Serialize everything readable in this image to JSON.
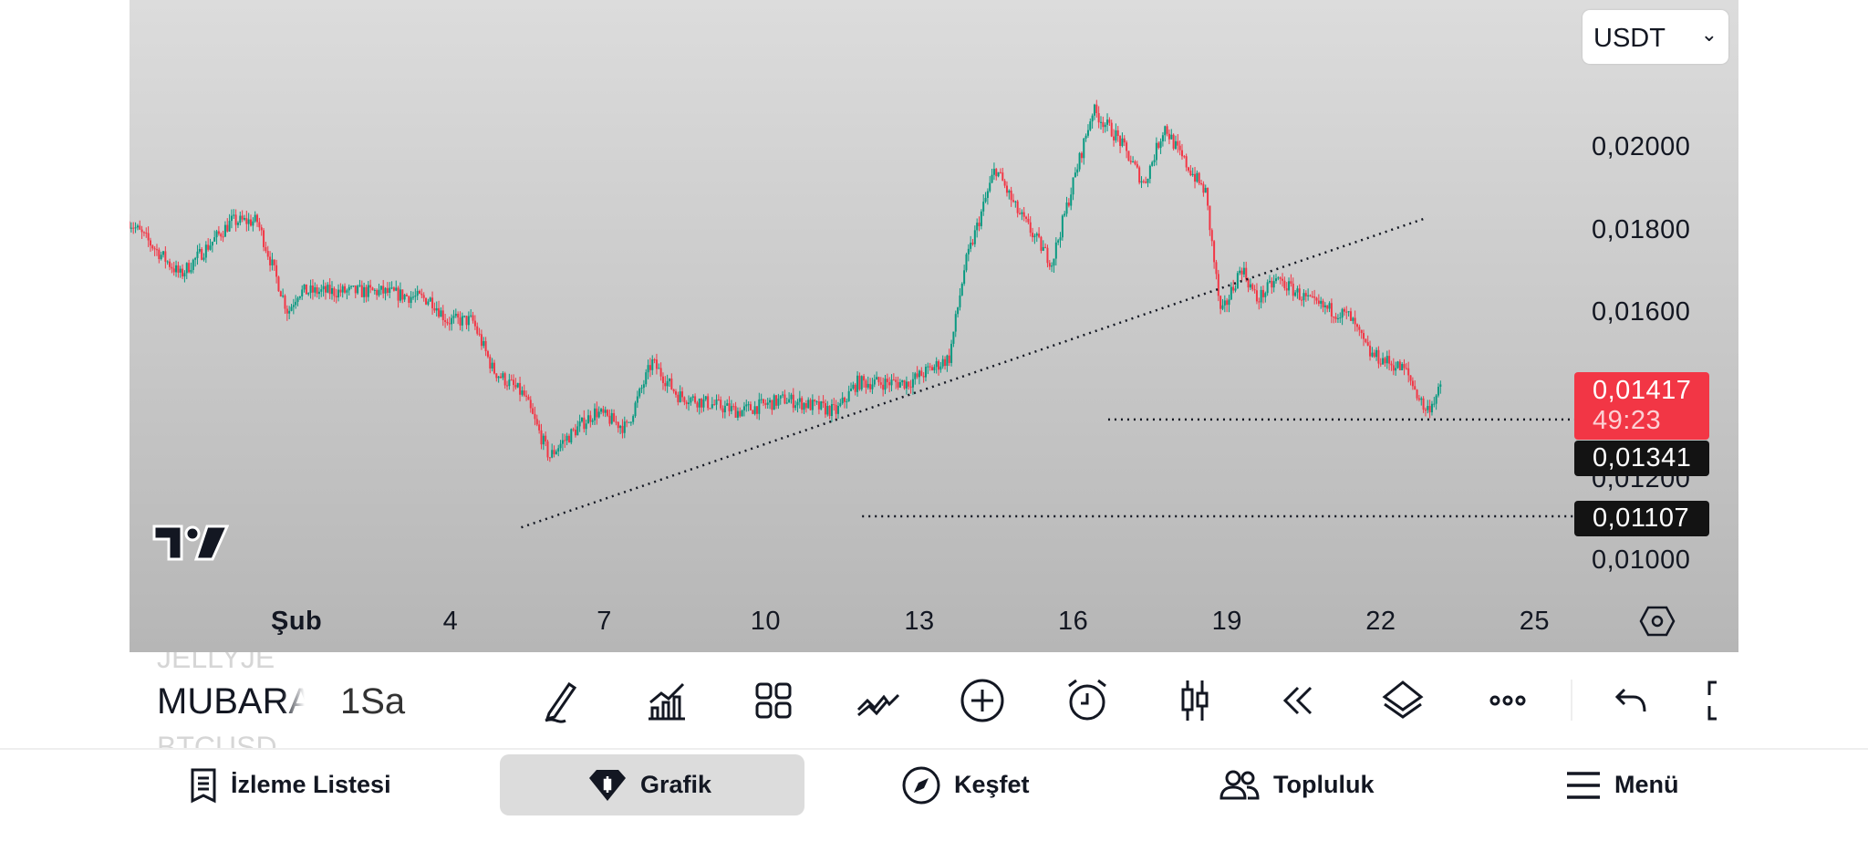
{
  "currency_selector": {
    "value": "USDT"
  },
  "price_axis": [
    "0,02000",
    "0,01800",
    "0,01600",
    "0,01200",
    "0,01000"
  ],
  "last_price": {
    "value": "0,01417",
    "countdown": "49:23"
  },
  "line_labels": [
    "0,01341",
    "0,01107"
  ],
  "time_axis": [
    "Şub",
    "4",
    "7",
    "10",
    "13",
    "16",
    "19",
    "22",
    "25"
  ],
  "toolbar": {
    "symbol": "MUBARA",
    "symbol_prev": "JELLYJE",
    "symbol_next": "BTCUSD",
    "interval": "1Sa"
  },
  "nav": {
    "watchlist": "İzleme Listesi",
    "chart": "Grafik",
    "explore": "Keşfet",
    "community": "Topluluk",
    "menu": "Menü"
  },
  "colors": {
    "up": "#089981",
    "down": "#f23645",
    "tag_dark": "#131313"
  },
  "chart_data": {
    "type": "candlestick",
    "timeframe": "1h",
    "x_unit": "day of February",
    "ylim": [
      0.0096,
      0.0215
    ],
    "path": [
      [
        -2.3,
        0.0182
      ],
      [
        -1.3,
        0.0169
      ],
      [
        -0.3,
        0.0182
      ],
      [
        0.2,
        0.0182
      ],
      [
        0.8,
        0.016
      ],
      [
        1,
        0.0165
      ],
      [
        2.6,
        0.0165
      ],
      [
        3.6,
        0.0163
      ],
      [
        3.9,
        0.0158
      ],
      [
        4.4,
        0.0158
      ],
      [
        4.8,
        0.0146
      ],
      [
        5.4,
        0.014
      ],
      [
        5.9,
        0.0125
      ],
      [
        6.1,
        0.0128
      ],
      [
        6.8,
        0.0136
      ],
      [
        7.4,
        0.0132
      ],
      [
        7.9,
        0.0148
      ],
      [
        8.4,
        0.014
      ],
      [
        9.6,
        0.0136
      ],
      [
        10.5,
        0.0139
      ],
      [
        11.5,
        0.0136
      ],
      [
        11.9,
        0.0143
      ],
      [
        12.9,
        0.0143
      ],
      [
        13.7,
        0.0149
      ],
      [
        14.0,
        0.0171
      ],
      [
        14.6,
        0.0195
      ],
      [
        15.0,
        0.0185
      ],
      [
        15.7,
        0.0172
      ],
      [
        16.5,
        0.0209
      ],
      [
        17.0,
        0.0202
      ],
      [
        17.5,
        0.0191
      ],
      [
        17.9,
        0.0205
      ],
      [
        18.2,
        0.0198
      ],
      [
        18.7,
        0.0189
      ],
      [
        19.0,
        0.0159
      ],
      [
        19.4,
        0.0171
      ],
      [
        19.7,
        0.0163
      ],
      [
        20.1,
        0.0168
      ],
      [
        20.8,
        0.0162
      ],
      [
        21.5,
        0.0159
      ],
      [
        21.9,
        0.015
      ],
      [
        22.6,
        0.0146
      ],
      [
        23.0,
        0.0136
      ],
      [
        23.3,
        0.01417
      ]
    ],
    "trendline": [
      [
        5.35,
        0.0108
      ],
      [
        22.98,
        0.01827
      ]
    ],
    "horizontal_lines": [
      {
        "price": 0.01341,
        "from": 16.8
      },
      {
        "price": 0.01107,
        "from": 12.0
      }
    ],
    "last_price": 0.01417
  }
}
